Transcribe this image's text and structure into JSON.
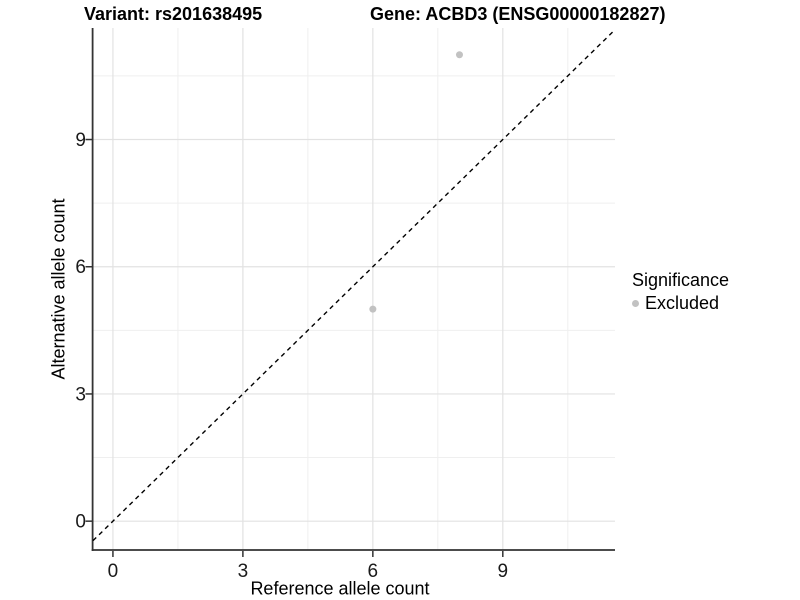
{
  "chart_data": {
    "type": "scatter",
    "titles": {
      "left": "Variant: rs201638495",
      "right": "Gene: ACBD3 (ENSG00000182827)"
    },
    "xlabel": "Reference allele count",
    "ylabel": "Alternative allele count",
    "x_ticks": [
      0,
      3,
      6,
      9
    ],
    "y_ticks": [
      0,
      3,
      6,
      9
    ],
    "x_minor_ticks": [
      1.5,
      4.5,
      7.5,
      10.5
    ],
    "y_minor_ticks": [
      1.5,
      4.5,
      7.5,
      10.5
    ],
    "xlim": [
      -0.46,
      11.59
    ],
    "ylim": [
      -0.68,
      11.63
    ],
    "grid": true,
    "points": [
      {
        "x": 6,
        "y": 5,
        "significance": "Excluded"
      },
      {
        "x": 8,
        "y": 11,
        "significance": "Excluded"
      }
    ],
    "identity_line": {
      "style": "dashed",
      "slope": 1,
      "intercept": 0,
      "color": "#000000"
    },
    "legend": {
      "title": "Significance",
      "position": "right",
      "items": [
        {
          "label": "Excluded",
          "color": "#c2c2c2"
        }
      ]
    },
    "colors": {
      "point": "#c2c2c2",
      "axis": "#333333",
      "grid_major": "#e2e2e2",
      "grid_minor": "#efefef",
      "tick_text": "#1a1a1a",
      "background": "#ffffff"
    }
  }
}
